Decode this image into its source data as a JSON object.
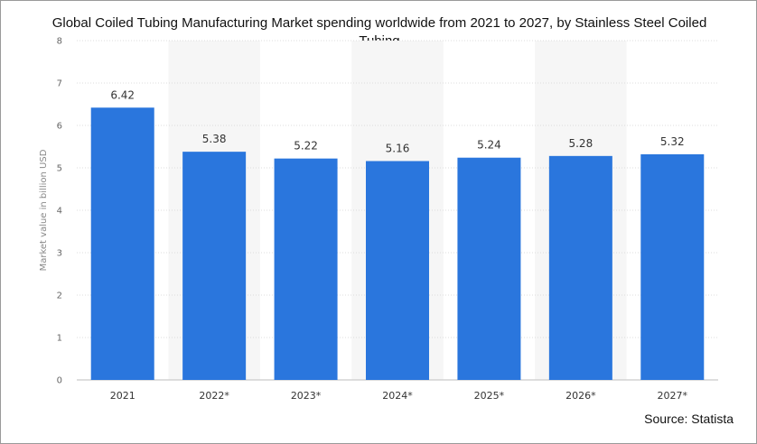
{
  "chart_data": {
    "type": "bar",
    "title": "Global Coiled Tubing Manufacturing Market spending worldwide from 2021 to 2027, by Stainless Steel Coiled Tubing",
    "xlabel": "",
    "ylabel": "Market value in billion USD",
    "categories": [
      "2021",
      "2022*",
      "2023*",
      "2024*",
      "2025*",
      "2026*",
      "2027*"
    ],
    "values": [
      6.42,
      5.38,
      5.22,
      5.16,
      5.24,
      5.28,
      5.32
    ],
    "ylim": [
      0,
      8
    ],
    "yticks": [
      0,
      1,
      2,
      3,
      4,
      5,
      6,
      7,
      8
    ],
    "grid": true,
    "legend": "none",
    "bar_color": "#2a76dd"
  },
  "source": "Source: Statista"
}
